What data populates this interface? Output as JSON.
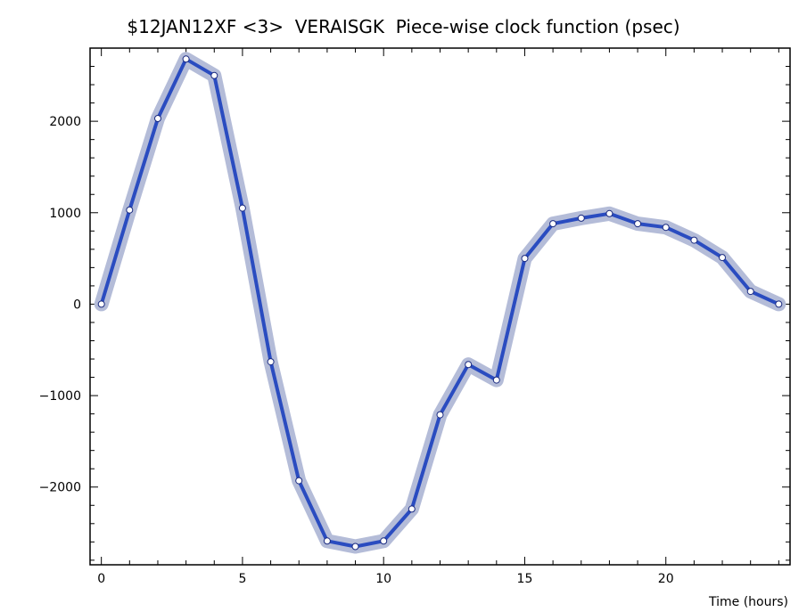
{
  "chart_data": {
    "type": "line",
    "title": "$12JAN12XF <3>  VERAISGK  Piece-wise clock function (psec)",
    "xlabel": "Time (hours)",
    "ylabel": "",
    "xlim": [
      -0.4,
      24.4
    ],
    "ylim": [
      -2850,
      2800
    ],
    "x_ticks": [
      0,
      5,
      10,
      15,
      20
    ],
    "y_ticks": [
      -2000,
      -1000,
      0,
      1000,
      2000
    ],
    "x_tick_labels": [
      "0",
      "5",
      "10",
      "15",
      "20"
    ],
    "y_tick_labels": [
      "−2000",
      "−1000",
      "0",
      "1000",
      "2000"
    ],
    "grid": false,
    "colors": {
      "line": "#2a4cc0",
      "band": "#b4bcd8",
      "marker_fill": "#ffffff",
      "marker_stroke": "#1a2a80"
    },
    "series": [
      {
        "x": [
          0,
          1,
          2,
          3,
          4,
          5,
          6,
          7,
          8,
          9,
          10,
          11,
          12,
          13,
          14,
          15,
          16,
          17,
          18,
          19,
          20,
          21,
          22,
          23,
          24
        ],
        "values": [
          0,
          1030,
          2030,
          2680,
          2500,
          1050,
          -630,
          -1930,
          -2590,
          -2650,
          -2590,
          -2240,
          -1210,
          -660,
          -830,
          500,
          880,
          940,
          990,
          880,
          840,
          700,
          510,
          140,
          0
        ]
      }
    ]
  }
}
